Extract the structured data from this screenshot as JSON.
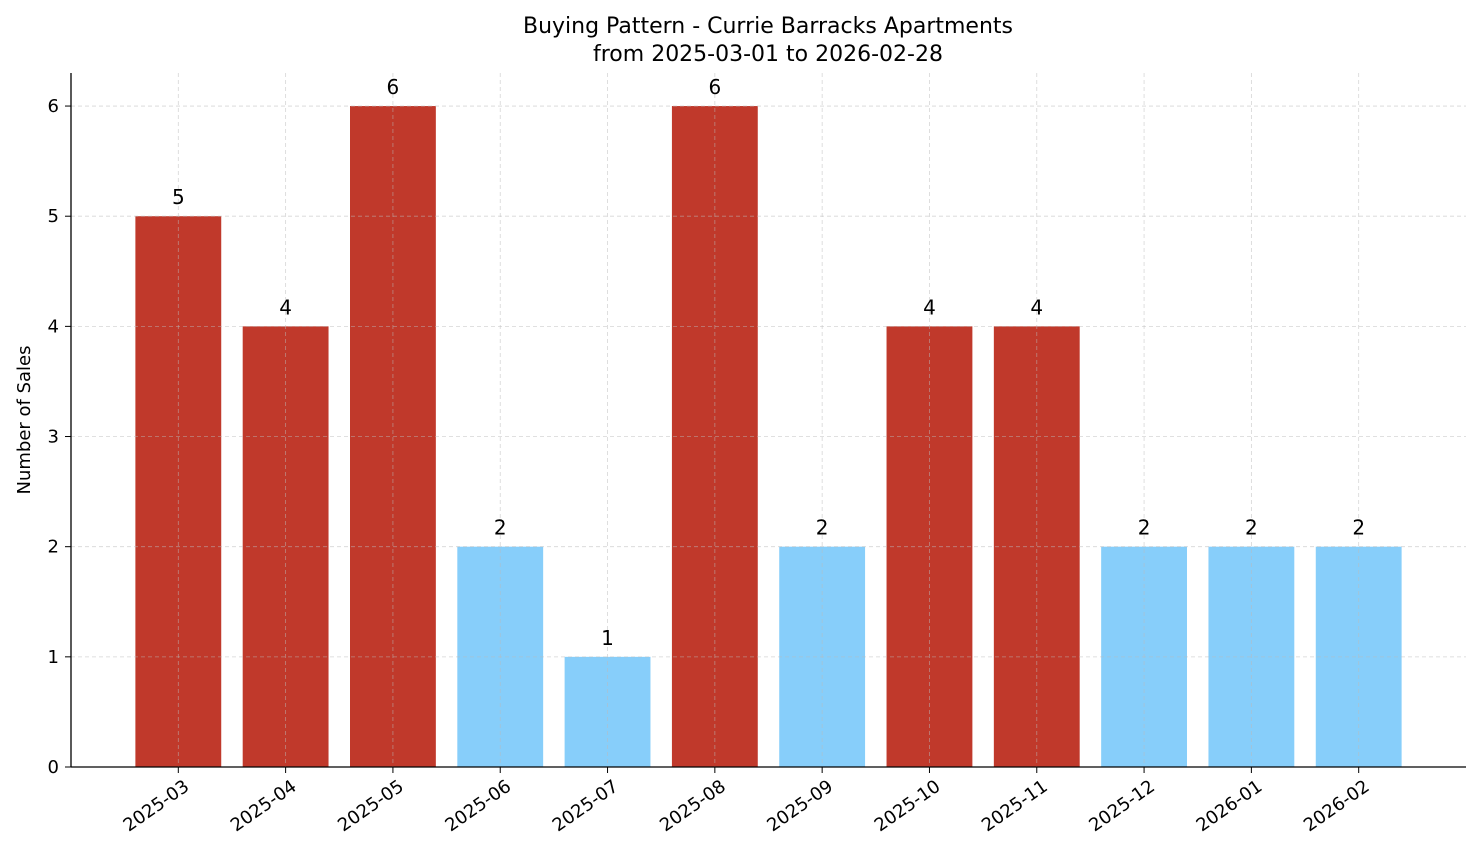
{
  "chart_data": {
    "type": "bar",
    "title": "Buying Pattern - Currie Barracks Apartments",
    "subtitle": "from 2025-03-01 to 2026-02-28",
    "xlabel": "",
    "ylabel": "Number of Sales",
    "categories": [
      "2025-03",
      "2025-04",
      "2025-05",
      "2025-06",
      "2025-07",
      "2025-08",
      "2025-09",
      "2025-10",
      "2025-11",
      "2025-12",
      "2026-01",
      "2026-02"
    ],
    "values": [
      5,
      4,
      6,
      2,
      1,
      6,
      2,
      4,
      4,
      2,
      2,
      2
    ],
    "bar_colors": [
      "#C0392B",
      "#C0392B",
      "#C0392B",
      "#87CEFA",
      "#87CEFA",
      "#C0392B",
      "#87CEFA",
      "#C0392B",
      "#C0392B",
      "#87CEFA",
      "#87CEFA",
      "#87CEFA"
    ],
    "ylim": [
      0,
      6.3
    ],
    "yticks": [
      0,
      1,
      2,
      3,
      4,
      5,
      6
    ],
    "grid": true,
    "data_labels": true
  }
}
